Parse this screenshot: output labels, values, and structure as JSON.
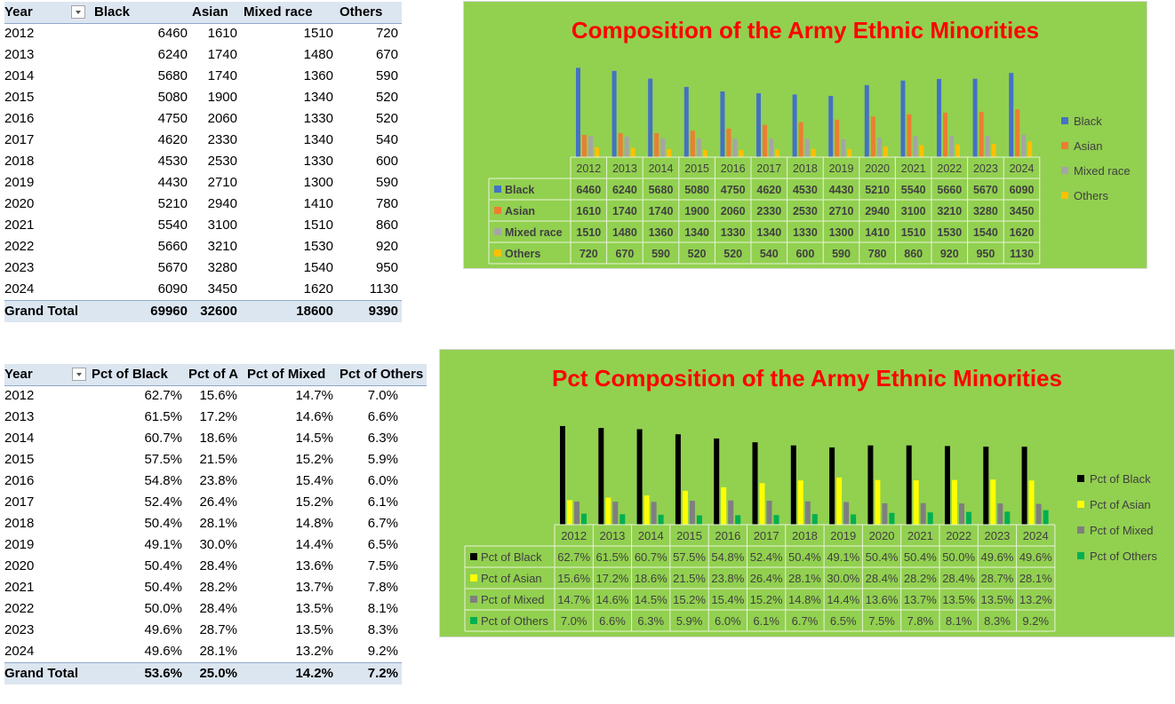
{
  "pivot1": {
    "headers": [
      "Year",
      "Black",
      "Asian",
      "Mixed race",
      "Others"
    ],
    "rows": [
      [
        "2012",
        "6460",
        "1610",
        "1510",
        "720"
      ],
      [
        "2013",
        "6240",
        "1740",
        "1480",
        "670"
      ],
      [
        "2014",
        "5680",
        "1740",
        "1360",
        "590"
      ],
      [
        "2015",
        "5080",
        "1900",
        "1340",
        "520"
      ],
      [
        "2016",
        "4750",
        "2060",
        "1330",
        "520"
      ],
      [
        "2017",
        "4620",
        "2330",
        "1340",
        "540"
      ],
      [
        "2018",
        "4530",
        "2530",
        "1330",
        "600"
      ],
      [
        "2019",
        "4430",
        "2710",
        "1300",
        "590"
      ],
      [
        "2020",
        "5210",
        "2940",
        "1410",
        "780"
      ],
      [
        "2021",
        "5540",
        "3100",
        "1510",
        "860"
      ],
      [
        "2022",
        "5660",
        "3210",
        "1530",
        "920"
      ],
      [
        "2023",
        "5670",
        "3280",
        "1540",
        "950"
      ],
      [
        "2024",
        "6090",
        "3450",
        "1620",
        "1130"
      ]
    ],
    "total": [
      "Grand Total",
      "69960",
      "32600",
      "18600",
      "9390"
    ]
  },
  "pivot2": {
    "headers": [
      "Year",
      "Pct of Black",
      "Pct of A",
      "Pct of Mixed",
      "Pct of Others"
    ],
    "rows": [
      [
        "2012",
        "62.7%",
        "15.6%",
        "14.7%",
        "7.0%"
      ],
      [
        "2013",
        "61.5%",
        "17.2%",
        "14.6%",
        "6.6%"
      ],
      [
        "2014",
        "60.7%",
        "18.6%",
        "14.5%",
        "6.3%"
      ],
      [
        "2015",
        "57.5%",
        "21.5%",
        "15.2%",
        "5.9%"
      ],
      [
        "2016",
        "54.8%",
        "23.8%",
        "15.4%",
        "6.0%"
      ],
      [
        "2017",
        "52.4%",
        "26.4%",
        "15.2%",
        "6.1%"
      ],
      [
        "2018",
        "50.4%",
        "28.1%",
        "14.8%",
        "6.7%"
      ],
      [
        "2019",
        "49.1%",
        "30.0%",
        "14.4%",
        "6.5%"
      ],
      [
        "2020",
        "50.4%",
        "28.4%",
        "13.6%",
        "7.5%"
      ],
      [
        "2021",
        "50.4%",
        "28.2%",
        "13.7%",
        "7.8%"
      ],
      [
        "2022",
        "50.0%",
        "28.4%",
        "13.5%",
        "8.1%"
      ],
      [
        "2023",
        "49.6%",
        "28.7%",
        "13.5%",
        "8.3%"
      ],
      [
        "2024",
        "49.6%",
        "28.1%",
        "13.2%",
        "9.2%"
      ]
    ],
    "total": [
      "Grand Total",
      "53.6%",
      "25.0%",
      "14.2%",
      "7.2%"
    ]
  },
  "chart_data": [
    {
      "type": "bar",
      "title": "Composition of the Army Ethnic Minorities",
      "categories": [
        "2012",
        "2013",
        "2014",
        "2015",
        "2016",
        "2017",
        "2018",
        "2019",
        "2020",
        "2021",
        "2022",
        "2023",
        "2024"
      ],
      "series": [
        {
          "name": "Black",
          "color": "#4472c4",
          "values": [
            6460,
            6240,
            5680,
            5080,
            4750,
            4620,
            4530,
            4430,
            5210,
            5540,
            5660,
            5670,
            6090
          ],
          "labels": [
            "6460",
            "6240",
            "5680",
            "5080",
            "4750",
            "4620",
            "4530",
            "4430",
            "5210",
            "5540",
            "5660",
            "5670",
            "6090"
          ]
        },
        {
          "name": "Asian",
          "color": "#ed7d31",
          "values": [
            1610,
            1740,
            1740,
            1900,
            2060,
            2330,
            2530,
            2710,
            2940,
            3100,
            3210,
            3280,
            3450
          ],
          "labels": [
            "1610",
            "1740",
            "1740",
            "1900",
            "2060",
            "2330",
            "2530",
            "2710",
            "2940",
            "3100",
            "3210",
            "3280",
            "3450"
          ]
        },
        {
          "name": "Mixed race",
          "color": "#a5a5a5",
          "values": [
            1510,
            1480,
            1360,
            1340,
            1330,
            1340,
            1330,
            1300,
            1410,
            1510,
            1530,
            1540,
            1620
          ],
          "labels": [
            "1510",
            "1480",
            "1360",
            "1340",
            "1330",
            "1340",
            "1330",
            "1300",
            "1410",
            "1510",
            "1530",
            "1540",
            "1620"
          ]
        },
        {
          "name": "Others",
          "color": "#ffc000",
          "values": [
            720,
            670,
            590,
            520,
            520,
            540,
            600,
            590,
            780,
            860,
            920,
            950,
            1130
          ],
          "labels": [
            "720",
            "670",
            "590",
            "520",
            "520",
            "540",
            "600",
            "590",
            "780",
            "860",
            "920",
            "950",
            "1130"
          ]
        }
      ],
      "ylim": [
        0,
        7000
      ],
      "grid": false,
      "legend": "right",
      "data_table": true
    },
    {
      "type": "bar",
      "title": "Pct Composition of the Army Ethnic Minorities",
      "categories": [
        "2012",
        "2013",
        "2014",
        "2015",
        "2016",
        "2017",
        "2018",
        "2019",
        "2020",
        "2021",
        "2022",
        "2023",
        "2024"
      ],
      "series": [
        {
          "name": "Pct of Black",
          "color": "#000000",
          "values": [
            62.7,
            61.5,
            60.7,
            57.5,
            54.8,
            52.4,
            50.4,
            49.1,
            50.4,
            50.4,
            50.0,
            49.6,
            49.6
          ],
          "labels": [
            "62.7%",
            "61.5%",
            "60.7%",
            "57.5%",
            "54.8%",
            "52.4%",
            "50.4%",
            "49.1%",
            "50.4%",
            "50.4%",
            "50.0%",
            "49.6%",
            "49.6%"
          ]
        },
        {
          "name": "Pct of Asian",
          "color": "#ffff00",
          "values": [
            15.6,
            17.2,
            18.6,
            21.5,
            23.8,
            26.4,
            28.1,
            30.0,
            28.4,
            28.2,
            28.4,
            28.7,
            28.1
          ],
          "labels": [
            "15.6%",
            "17.2%",
            "18.6%",
            "21.5%",
            "23.8%",
            "26.4%",
            "28.1%",
            "30.0%",
            "28.4%",
            "28.2%",
            "28.4%",
            "28.7%",
            "28.1%"
          ]
        },
        {
          "name": "Pct of Mixed",
          "color": "#7f7f7f",
          "values": [
            14.7,
            14.6,
            14.5,
            15.2,
            15.4,
            15.2,
            14.8,
            14.4,
            13.6,
            13.7,
            13.5,
            13.5,
            13.2
          ],
          "labels": [
            "14.7%",
            "14.6%",
            "14.5%",
            "15.2%",
            "15.4%",
            "15.2%",
            "14.8%",
            "14.4%",
            "13.6%",
            "13.7%",
            "13.5%",
            "13.5%",
            "13.2%"
          ]
        },
        {
          "name": "Pct of Others",
          "color": "#00b050",
          "values": [
            7.0,
            6.6,
            6.3,
            5.9,
            6.0,
            6.1,
            6.7,
            6.5,
            7.5,
            7.8,
            8.1,
            8.3,
            9.2
          ],
          "labels": [
            "7.0%",
            "6.6%",
            "6.3%",
            "5.9%",
            "6.0%",
            "6.1%",
            "6.7%",
            "6.5%",
            "7.5%",
            "7.8%",
            "8.1%",
            "8.3%",
            "9.2%"
          ]
        }
      ],
      "ylim": [
        0,
        70
      ],
      "grid": false,
      "legend": "right",
      "data_table": true
    }
  ]
}
